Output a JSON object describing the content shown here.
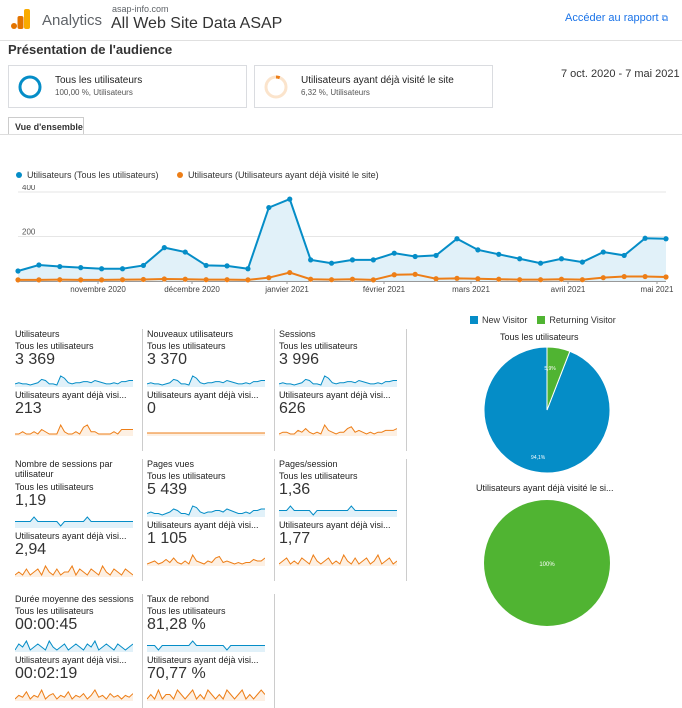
{
  "header": {
    "app_name": "Analytics",
    "account": "asap-info.com",
    "view": "All Web Site Data ASAP",
    "report_link": "Accéder au rapport",
    "report_link_icon": "external-link-icon"
  },
  "page_title": "Présentation de l'audience",
  "segments": [
    {
      "name": "Tous les utilisateurs",
      "detail": "100,00 %, Utilisateurs",
      "color": "#058dc7"
    },
    {
      "name": "Utilisateurs ayant déjà visité le site",
      "detail": "6,32 %, Utilisateurs",
      "color": "#ed7e17"
    }
  ],
  "date_range": "7 oct. 2020 - 7 mai 2021",
  "tab": "Vue d'ensemble",
  "colors": {
    "blue": "#058dc7",
    "orange": "#ed7e17",
    "green": "#50b432",
    "fill": "#e1f1f9"
  },
  "chart_data": {
    "type": "line",
    "legend": [
      "Utilisateurs (Tous les utilisateurs)",
      "Utilisateurs (Utilisateurs ayant déjà visité le site)"
    ],
    "y_ticks": [
      "400",
      "200"
    ],
    "ylim": [
      0,
      400
    ],
    "x_ticks": [
      "novembre 2020",
      "décembre 2020",
      "janvier 2021",
      "février 2021",
      "mars 2021",
      "avril 2021",
      "mai 2021"
    ],
    "series": [
      {
        "name": "Utilisateurs (Tous les utilisateurs)",
        "values": [
          45,
          72,
          65,
          60,
          55,
          55,
          70,
          150,
          130,
          70,
          68,
          55,
          330,
          368,
          95,
          80,
          95,
          95,
          125,
          110,
          115,
          190,
          140,
          120,
          100,
          80,
          100,
          85,
          130,
          115,
          192,
          190
        ]
      },
      {
        "name": "Utilisateurs (Utilisateurs ayant déjà visité le site)",
        "values": [
          5,
          5,
          6,
          5,
          5,
          6,
          7,
          9,
          8,
          6,
          6,
          5,
          15,
          38,
          8,
          6,
          8,
          5,
          28,
          30,
          10,
          12,
          10,
          8,
          6,
          6,
          8,
          6,
          15,
          20,
          20,
          18
        ]
      }
    ]
  },
  "metrics": [
    {
      "name": "Utilisateurs",
      "label_all": "Tous les utilisateurs",
      "value_all": "3 369",
      "label_ret": "Utilisateurs ayant déjà visi...",
      "value_ret": "213",
      "spark_all": [
        5,
        6,
        5,
        5,
        4,
        5,
        6,
        9,
        8,
        5,
        5,
        4,
        12,
        10,
        6,
        5,
        6,
        6,
        7,
        7,
        6,
        8,
        7,
        6,
        5,
        5,
        6,
        5,
        7,
        7,
        8,
        8
      ],
      "spark_ret": [
        2,
        2,
        3,
        2,
        2,
        3,
        2,
        4,
        3,
        2,
        2,
        2,
        6,
        3,
        2,
        2,
        3,
        2,
        5,
        6,
        3,
        3,
        2,
        2,
        2,
        2,
        3,
        2,
        4,
        4,
        4,
        4
      ]
    },
    {
      "name": "Nouveaux utilisateurs",
      "label_all": "Tous les utilisateurs",
      "value_all": "3 370",
      "label_ret": "Utilisateurs ayant déjà visi...",
      "value_ret": "0",
      "spark_all": [
        5,
        6,
        5,
        5,
        4,
        5,
        6,
        9,
        8,
        5,
        5,
        4,
        12,
        10,
        6,
        5,
        6,
        6,
        7,
        7,
        6,
        8,
        7,
        6,
        5,
        5,
        6,
        5,
        7,
        7,
        8,
        8
      ],
      "spark_ret": [
        1,
        1,
        1,
        1,
        1,
        1,
        1,
        1,
        1,
        1,
        1,
        1,
        1,
        1,
        1,
        1,
        1,
        1,
        1,
        1,
        1,
        1,
        1,
        1,
        1,
        1,
        1,
        1,
        1,
        1,
        1,
        1
      ]
    },
    {
      "name": "Sessions",
      "label_all": "Tous les utilisateurs",
      "value_all": "3 996",
      "label_ret": "Utilisateurs ayant déjà visi...",
      "value_ret": "626",
      "spark_all": [
        5,
        6,
        5,
        5,
        4,
        5,
        6,
        9,
        8,
        5,
        5,
        4,
        12,
        10,
        6,
        5,
        6,
        6,
        7,
        7,
        6,
        8,
        7,
        6,
        5,
        5,
        6,
        5,
        7,
        7,
        8,
        8
      ],
      "spark_ret": [
        2,
        3,
        3,
        2,
        2,
        4,
        3,
        5,
        3,
        2,
        3,
        2,
        7,
        4,
        3,
        2,
        3,
        3,
        5,
        6,
        3,
        4,
        3,
        2,
        3,
        2,
        3,
        3,
        4,
        4,
        4,
        5
      ]
    },
    {
      "name": "Nombre de sessions par utilisateur",
      "label_all": "Tous les utilisateurs",
      "value_all": "1,19",
      "label_ret": "Utilisateurs ayant déjà visi...",
      "value_ret": "2,94",
      "spark_all": [
        5,
        5,
        5,
        5,
        5,
        6,
        5,
        5,
        5,
        5,
        5,
        5,
        4,
        5,
        5,
        5,
        5,
        5,
        5,
        6,
        5,
        5,
        5,
        5,
        5,
        5,
        5,
        5,
        5,
        5,
        5,
        5
      ],
      "spark_ret": [
        3,
        4,
        3,
        5,
        3,
        4,
        5,
        3,
        6,
        4,
        3,
        5,
        3,
        4,
        4,
        6,
        3,
        5,
        4,
        3,
        5,
        4,
        3,
        6,
        4,
        3,
        5,
        4,
        3,
        5,
        4,
        3
      ]
    },
    {
      "name": "Pages vues",
      "label_all": "Tous les utilisateurs",
      "value_all": "5 439",
      "label_ret": "Utilisateurs ayant déjà visi...",
      "value_ret": "1 105",
      "spark_all": [
        5,
        6,
        5,
        5,
        4,
        5,
        6,
        8,
        7,
        5,
        5,
        4,
        10,
        9,
        6,
        5,
        6,
        6,
        7,
        7,
        6,
        8,
        7,
        6,
        5,
        5,
        6,
        5,
        7,
        7,
        8,
        8
      ],
      "spark_ret": [
        2,
        3,
        4,
        2,
        3,
        5,
        3,
        6,
        3,
        2,
        4,
        2,
        8,
        4,
        3,
        2,
        4,
        3,
        6,
        7,
        3,
        4,
        3,
        2,
        3,
        2,
        3,
        3,
        5,
        4,
        4,
        6
      ]
    },
    {
      "name": "Pages/session",
      "label_all": "Tous les utilisateurs",
      "value_all": "1,36",
      "label_ret": "Utilisateurs ayant déjà visi...",
      "value_ret": "1,77",
      "spark_all": [
        5,
        5,
        5,
        6,
        5,
        5,
        5,
        5,
        5,
        4,
        5,
        5,
        5,
        5,
        5,
        5,
        5,
        5,
        5,
        6,
        5,
        5,
        5,
        5,
        5,
        5,
        5,
        5,
        5,
        5,
        5,
        5
      ],
      "spark_ret": [
        3,
        4,
        5,
        3,
        4,
        3,
        5,
        4,
        3,
        6,
        4,
        3,
        4,
        5,
        3,
        4,
        3,
        6,
        4,
        3,
        5,
        3,
        4,
        5,
        3,
        4,
        6,
        3,
        4,
        5,
        3,
        4
      ]
    },
    {
      "name": "Durée moyenne des sessions",
      "label_all": "Tous les utilisateurs",
      "value_all": "00:00:45",
      "label_ret": "Utilisateurs ayant déjà visi...",
      "value_ret": "00:02:19",
      "spark_all": [
        4,
        6,
        5,
        7,
        4,
        5,
        6,
        5,
        4,
        7,
        5,
        4,
        5,
        6,
        4,
        5,
        6,
        5,
        4,
        6,
        5,
        7,
        4,
        5,
        6,
        5,
        4,
        6,
        5,
        4,
        5,
        6
      ],
      "spark_ret": [
        3,
        5,
        4,
        7,
        3,
        5,
        4,
        8,
        3,
        5,
        6,
        3,
        5,
        4,
        7,
        3,
        5,
        4,
        6,
        3,
        5,
        8,
        4,
        5,
        3,
        6,
        4,
        5,
        3,
        5,
        4,
        6
      ]
    },
    {
      "name": "Taux de rebond",
      "label_all": "Tous les utilisateurs",
      "value_all": "81,28 %",
      "label_ret": "Utilisateurs ayant déjà visi...",
      "value_ret": "70,77 %",
      "spark_all": [
        6,
        6,
        6,
        5,
        6,
        6,
        6,
        6,
        6,
        6,
        6,
        6,
        7,
        6,
        6,
        6,
        6,
        6,
        6,
        6,
        6,
        5,
        6,
        6,
        6,
        6,
        6,
        6,
        6,
        6,
        6,
        6
      ],
      "spark_ret": [
        4,
        5,
        4,
        6,
        4,
        5,
        5,
        4,
        6,
        5,
        4,
        5,
        6,
        4,
        5,
        4,
        6,
        5,
        4,
        5,
        4,
        6,
        5,
        4,
        5,
        6,
        4,
        5,
        4,
        5,
        6,
        5
      ]
    }
  ],
  "pie_legend": [
    {
      "label": "New Visitor",
      "color": "#058dc7"
    },
    {
      "label": "Returning Visitor",
      "color": "#50b432"
    }
  ],
  "pies": [
    {
      "title": "Tous les utilisateurs",
      "new_pct": 94.1,
      "new_label": "94,1%",
      "ret_label": "5,9%"
    },
    {
      "title": "Utilisateurs ayant déjà visité le si...",
      "new_pct": 0,
      "new_label": "",
      "ret_label": "100%"
    }
  ]
}
